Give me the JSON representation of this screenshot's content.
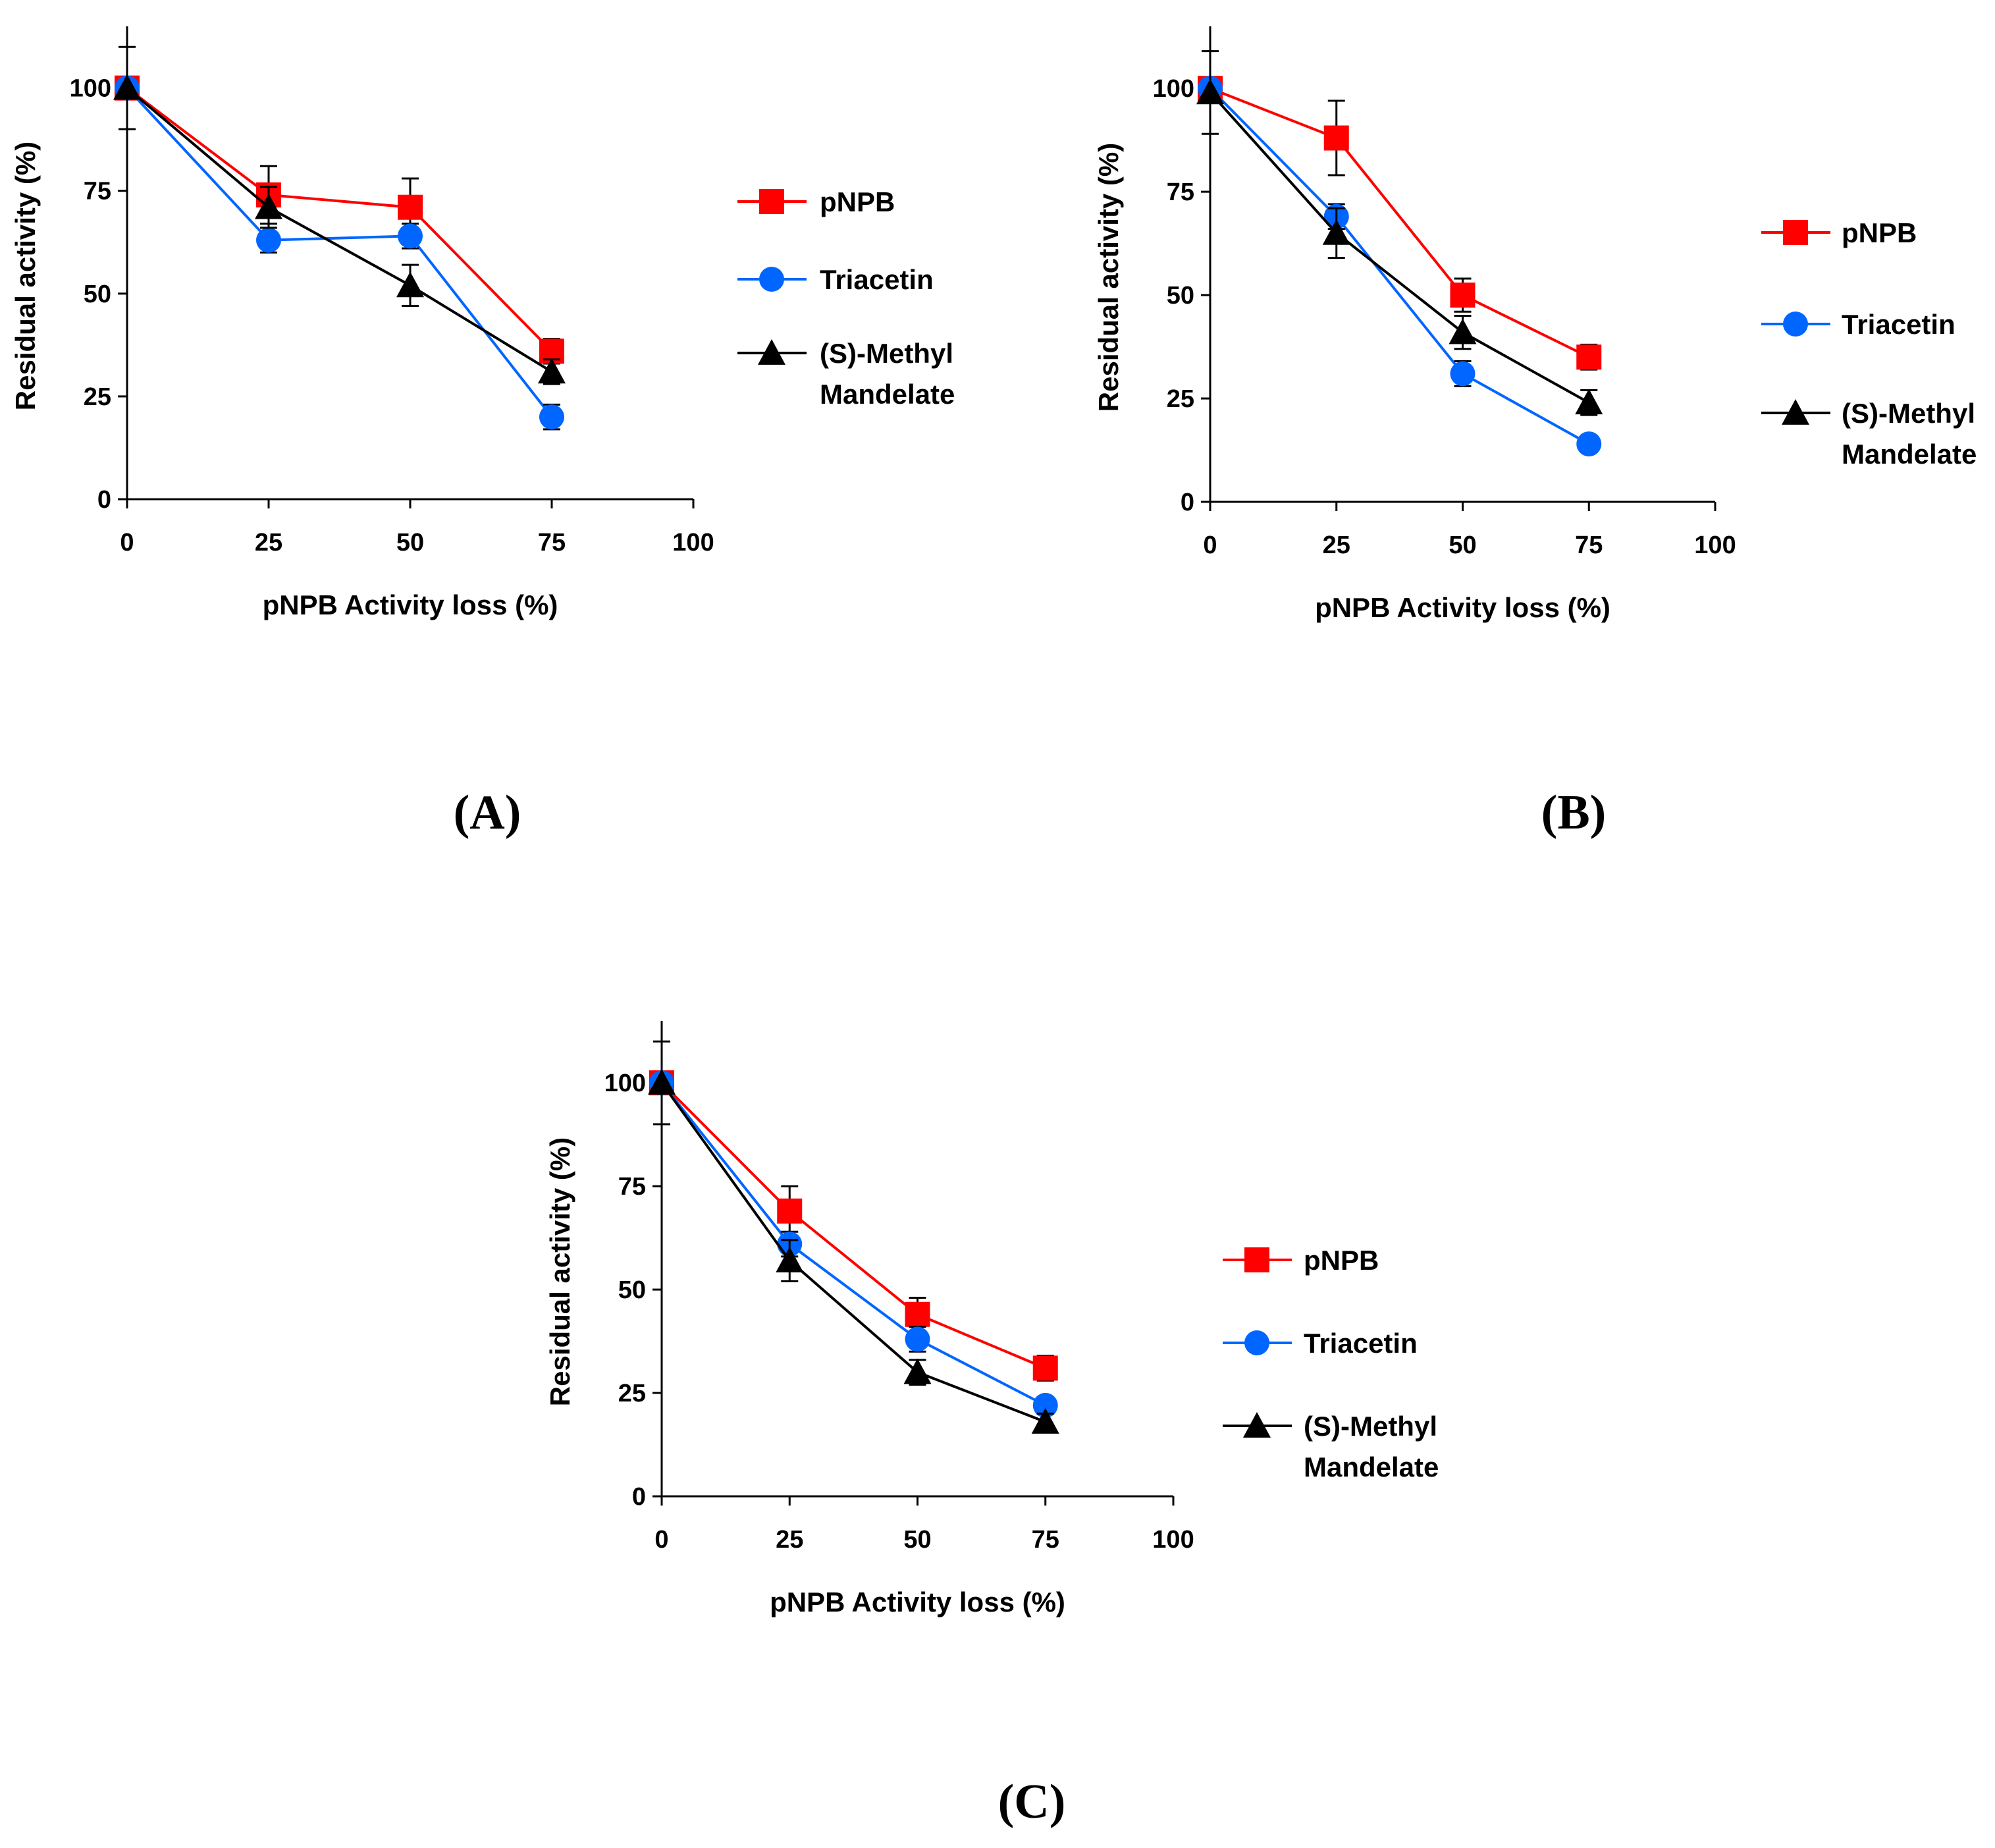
{
  "chart_data": [
    {
      "panel": "(A)",
      "type": "line",
      "xlabel": "pNPB Activity loss (%)",
      "ylabel": "Residual activity (%)",
      "x_ticks": [
        "0",
        "25",
        "50",
        "75",
        "100"
      ],
      "y_ticks": [
        "0",
        "25",
        "50",
        "75",
        "100"
      ],
      "xlim": [
        0,
        100
      ],
      "ylim": [
        0,
        115
      ],
      "legend_position": "right",
      "x": [
        0,
        25,
        50,
        75
      ],
      "series": [
        {
          "name": "pNPB",
          "color": "#ff0000",
          "marker": "square",
          "values": [
            100,
            74,
            71,
            36
          ],
          "errors": [
            0,
            7,
            7,
            3
          ]
        },
        {
          "name": "Triacetin",
          "color": "#0066ff",
          "marker": "circle",
          "values": [
            100,
            63,
            64,
            20
          ],
          "errors": [
            0,
            3,
            3,
            3
          ]
        },
        {
          "name": "(S)-Methyl Mandelate",
          "name_lines": [
            "(S)-Methyl",
            "Mandelate"
          ],
          "color": "#000000",
          "marker": "triangle",
          "values": [
            100,
            71,
            52,
            31
          ],
          "errors": [
            10,
            5,
            5,
            3
          ]
        }
      ]
    },
    {
      "panel": "(B)",
      "type": "line",
      "xlabel": "pNPB Activity loss (%)",
      "ylabel": "Residual activity (%)",
      "x_ticks": [
        "0",
        "25",
        "50",
        "75",
        "100"
      ],
      "y_ticks": [
        "0",
        "25",
        "50",
        "75",
        "100"
      ],
      "xlim": [
        0,
        100
      ],
      "ylim": [
        0,
        115
      ],
      "legend_position": "right",
      "x": [
        0,
        25,
        50,
        75
      ],
      "series": [
        {
          "name": "pNPB",
          "color": "#ff0000",
          "marker": "square",
          "values": [
            100,
            88,
            50,
            35
          ],
          "errors": [
            0,
            9,
            4,
            3
          ]
        },
        {
          "name": "Triacetin",
          "color": "#0066ff",
          "marker": "circle",
          "values": [
            100,
            69,
            31,
            14
          ],
          "errors": [
            0,
            3,
            3,
            2
          ]
        },
        {
          "name": "(S)-Methyl Mandelate",
          "name_lines": [
            "(S)-Methyl",
            "Mandelate"
          ],
          "color": "#000000",
          "marker": "triangle",
          "values": [
            99,
            65,
            41,
            24
          ],
          "errors": [
            10,
            6,
            4,
            3
          ]
        }
      ]
    },
    {
      "panel": "(C)",
      "type": "line",
      "xlabel": "pNPB Activity loss (%)",
      "ylabel": "Residual activity (%)",
      "x_ticks": [
        "0",
        "25",
        "50",
        "75",
        "100"
      ],
      "y_ticks": [
        "0",
        "25",
        "50",
        "75",
        "100"
      ],
      "xlim": [
        0,
        100
      ],
      "ylim": [
        0,
        115
      ],
      "legend_position": "right",
      "x": [
        0,
        25,
        50,
        75
      ],
      "series": [
        {
          "name": "pNPB",
          "color": "#ff0000",
          "marker": "square",
          "values": [
            100,
            69,
            44,
            31
          ],
          "errors": [
            0,
            6,
            4,
            3
          ]
        },
        {
          "name": "Triacetin",
          "color": "#0066ff",
          "marker": "circle",
          "values": [
            100,
            61,
            38,
            22
          ],
          "errors": [
            0,
            3,
            3,
            2
          ]
        },
        {
          "name": "(S)-Methyl Mandelate",
          "name_lines": [
            "(S)-Methyl",
            "Mandelate"
          ],
          "color": "#000000",
          "marker": "triangle",
          "values": [
            100,
            57,
            30,
            18
          ],
          "errors": [
            10,
            5,
            3,
            2
          ]
        }
      ]
    }
  ]
}
